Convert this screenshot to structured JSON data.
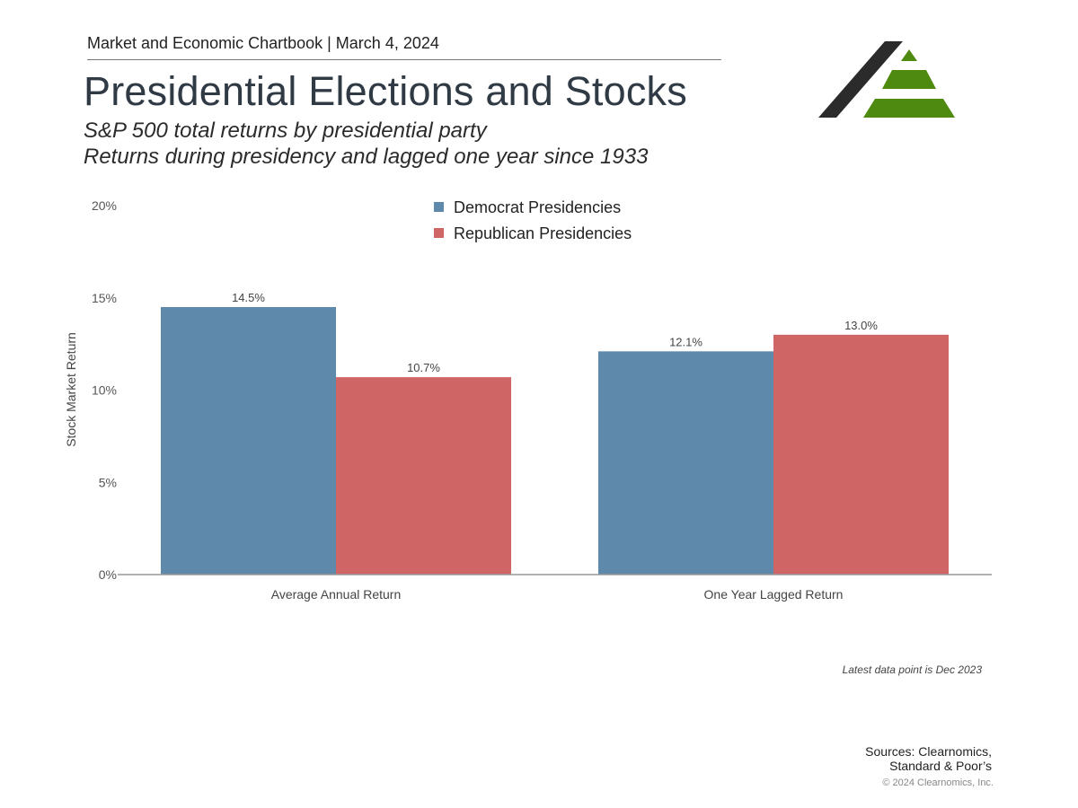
{
  "header": {
    "chartbook": "Market and Economic Chartbook | March 4, 2024",
    "title": "Presidential Elections and Stocks",
    "subtitle_line1": "S&P 500 total returns by presidential party",
    "subtitle_line2": "Returns during presidency and lagged one year since 1933"
  },
  "logo": {
    "icon": "clearnomics-logo-icon",
    "colors": {
      "dark": "#2b2b2b",
      "green": "#4f8a10"
    }
  },
  "chart_data": {
    "type": "bar",
    "categories": [
      "Average Annual Return",
      "One Year Lagged Return"
    ],
    "series": [
      {
        "name": "Democrat Presidencies",
        "values": [
          14.5,
          12.1
        ],
        "labels": [
          "14.5%",
          "12.1%"
        ],
        "color": "#5f89ab"
      },
      {
        "name": "Republican Presidencies",
        "values": [
          10.7,
          13.0
        ],
        "labels": [
          "10.7%",
          "13.0%"
        ],
        "color": "#cf6665"
      }
    ],
    "ylabel": "Stock Market Return",
    "ylim": [
      0,
      20
    ],
    "yticks": [
      0,
      5,
      10,
      15,
      20
    ],
    "ytick_labels": [
      "0%",
      "5%",
      "10%",
      "15%",
      "20%"
    ],
    "legend_position": "top-center",
    "grid": false
  },
  "footer": {
    "note": "Latest data point is Dec 2023",
    "sources_line1": "Sources: Clearnomics,",
    "sources_line2": "Standard & Poor’s",
    "copyright": "© 2024 Clearnomics, Inc."
  }
}
